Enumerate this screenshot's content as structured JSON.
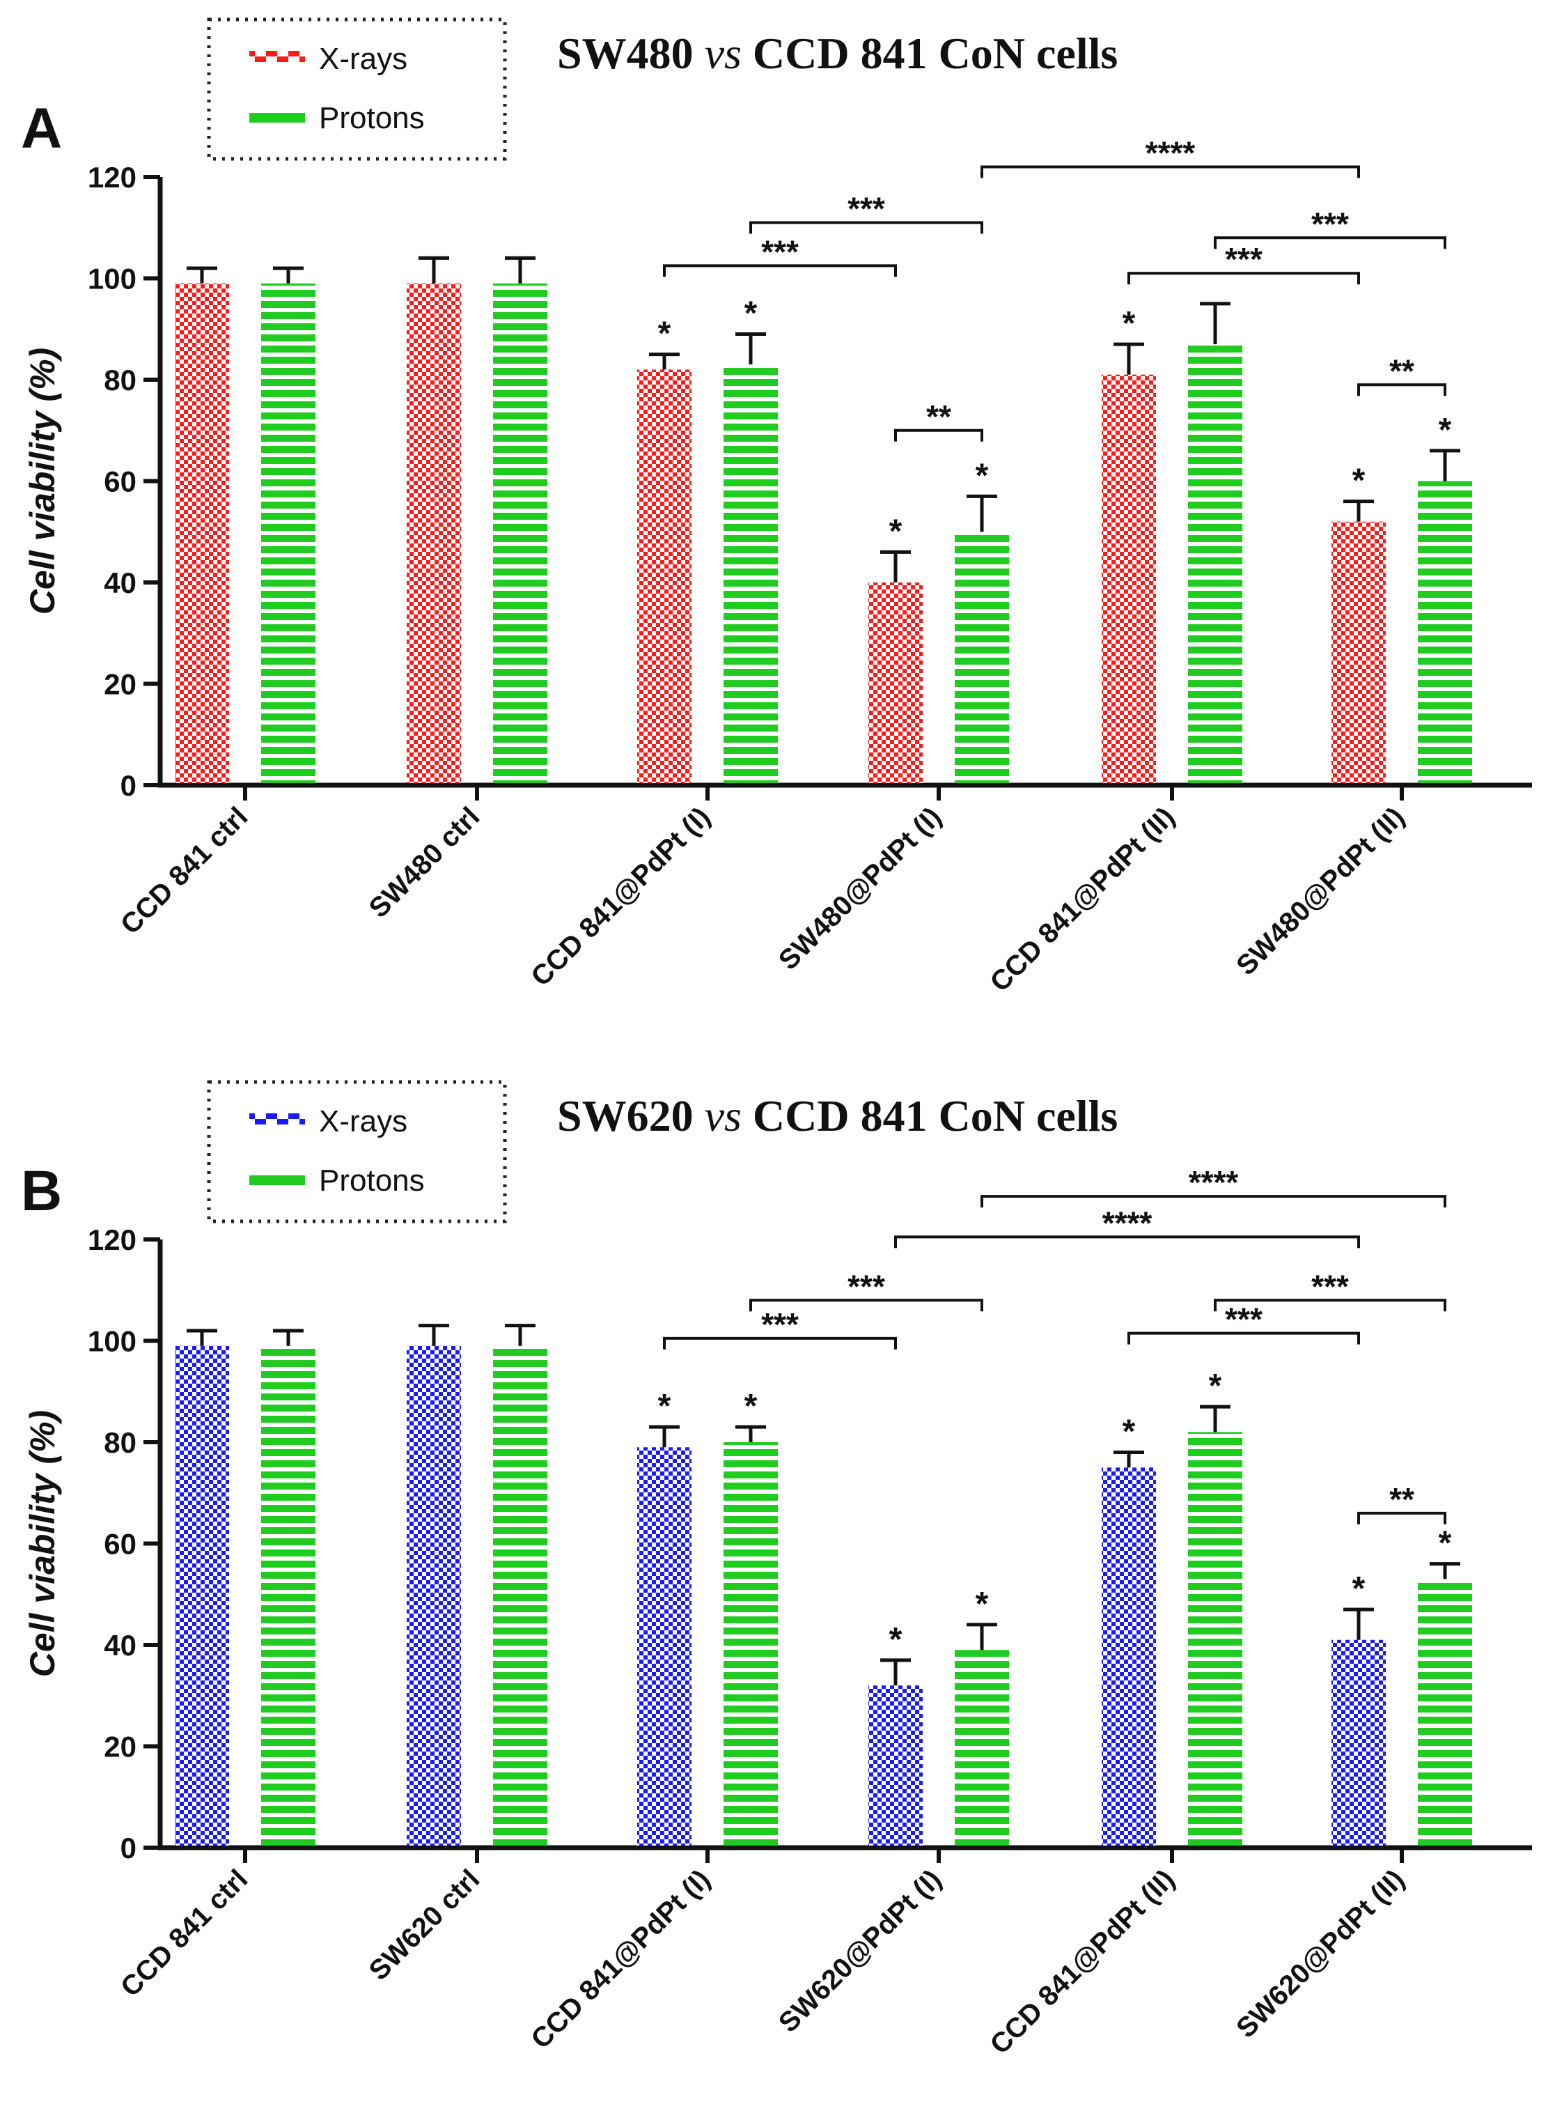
{
  "chart_data": [
    {
      "type": "bar",
      "panel_label": "A",
      "title": "SW480 vs CCD 841 CoN cells",
      "title_parts": [
        "SW480 ",
        "vs",
        " CCD 841 CoN cells"
      ],
      "ylabel": "Cell viability (%)",
      "xlabel": "",
      "ylim": [
        0,
        120
      ],
      "yticks": [
        0,
        20,
        40,
        60,
        80,
        100,
        120
      ],
      "categories": [
        "CCD 841 ctrl",
        "SW480 ctrl",
        "CCD 841@PdPt (I)",
        "SW480@PdPt (I)",
        "CCD 841@PdPt (II)",
        "SW480@PdPt (II)"
      ],
      "legend_position": "top-left",
      "series": [
        {
          "name": "X-rays",
          "color": "#ff1a1a",
          "pattern": "checker",
          "values": [
            99,
            99,
            82,
            40,
            81,
            52
          ],
          "errors": [
            3,
            5,
            3,
            6,
            6,
            4
          ],
          "marks": [
            "",
            "",
            "*",
            "*",
            "*",
            "*"
          ]
        },
        {
          "name": "Protons",
          "color": "#1fcc1f",
          "pattern": "stripes",
          "values": [
            99,
            99,
            83,
            50,
            87,
            60
          ],
          "errors": [
            3,
            5,
            6,
            7,
            8,
            6
          ],
          "marks": [
            "",
            "",
            "*",
            "*",
            "",
            "*"
          ]
        }
      ],
      "comparisons": [
        {
          "from": [
            3,
            1
          ],
          "to": [
            5,
            0
          ],
          "y": 122,
          "label": "****"
        },
        {
          "from": [
            2,
            1
          ],
          "to": [
            3,
            1
          ],
          "y": 111,
          "label": "***"
        },
        {
          "from": [
            2,
            0
          ],
          "to": [
            3,
            0
          ],
          "y": 102.5,
          "label": "***"
        },
        {
          "from": [
            4,
            1
          ],
          "to": [
            5,
            1
          ],
          "y": 108,
          "label": "***"
        },
        {
          "from": [
            4,
            0
          ],
          "to": [
            5,
            0
          ],
          "y": 101,
          "label": "***"
        },
        {
          "from": [
            3,
            0
          ],
          "to": [
            3,
            1
          ],
          "y": 70,
          "label": "**"
        },
        {
          "from": [
            5,
            0
          ],
          "to": [
            5,
            1
          ],
          "y": 79,
          "label": "**"
        }
      ]
    },
    {
      "type": "bar",
      "panel_label": "B",
      "title": "SW620 vs CCD 841 CoN cells",
      "title_parts": [
        "SW620 ",
        "vs",
        " CCD 841 CoN cells"
      ],
      "ylabel": "Cell viability (%)",
      "xlabel": "",
      "ylim": [
        0,
        120
      ],
      "yticks": [
        0,
        20,
        40,
        60,
        80,
        100,
        120
      ],
      "categories": [
        "CCD 841 ctrl",
        "SW620 ctrl",
        "CCD 841@PdPt (I)",
        "SW620@PdPt (I)",
        "CCD 841@PdPt (II)",
        "SW620@PdPt (II)"
      ],
      "legend_position": "top-left",
      "series": [
        {
          "name": "X-rays",
          "color": "#1a1aff",
          "pattern": "checker",
          "values": [
            99,
            99,
            79,
            32,
            75,
            41
          ],
          "errors": [
            3,
            4,
            4,
            5,
            3,
            6
          ],
          "marks": [
            "",
            "",
            "*",
            "*",
            "*",
            "*"
          ]
        },
        {
          "name": "Protons",
          "color": "#1fcc1f",
          "pattern": "stripes",
          "values": [
            99,
            99,
            80,
            39,
            82,
            53
          ],
          "errors": [
            3,
            4,
            3,
            5,
            5,
            3
          ],
          "marks": [
            "",
            "",
            "*",
            "*",
            "*",
            "*"
          ]
        }
      ],
      "comparisons": [
        {
          "from": [
            3,
            1
          ],
          "to": [
            5,
            1
          ],
          "y": 128.5,
          "label": "****"
        },
        {
          "from": [
            3,
            0
          ],
          "to": [
            5,
            0
          ],
          "y": 120.5,
          "label": "****"
        },
        {
          "from": [
            2,
            1
          ],
          "to": [
            3,
            1
          ],
          "y": 108,
          "label": "***"
        },
        {
          "from": [
            2,
            0
          ],
          "to": [
            3,
            0
          ],
          "y": 100.5,
          "label": "***"
        },
        {
          "from": [
            4,
            1
          ],
          "to": [
            5,
            1
          ],
          "y": 108,
          "label": "***"
        },
        {
          "from": [
            4,
            0
          ],
          "to": [
            5,
            0
          ],
          "y": 101.5,
          "label": "***"
        },
        {
          "from": [
            5,
            0
          ],
          "to": [
            5,
            1
          ],
          "y": 66,
          "label": "**"
        }
      ]
    }
  ]
}
